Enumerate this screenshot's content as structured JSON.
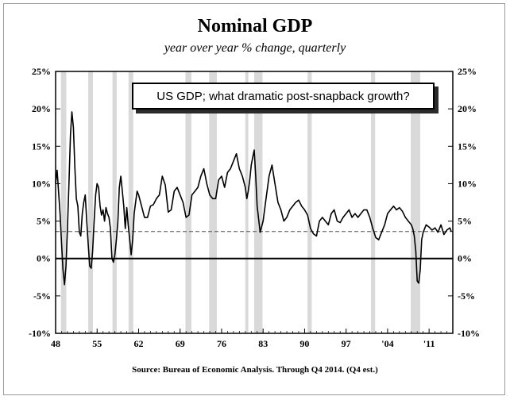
{
  "chart_data": {
    "type": "line",
    "title": "Nominal GDP",
    "subtitle": "year over year % change, quarterly",
    "source": "Source:  Bureau of Economic Analysis. Through Q4 2014. (Q4 est.)",
    "annotation": "US GDP; what dramatic post-snapback growth?",
    "ylim": [
      -10,
      25
    ],
    "yticks": [
      "-10%",
      "-5%",
      "0%",
      "5%",
      "10%",
      "15%",
      "20%",
      "25%"
    ],
    "ytick_values": [
      -10,
      -5,
      0,
      5,
      10,
      15,
      20,
      25
    ],
    "xlim": [
      1948,
      2015
    ],
    "xticks": [
      "48",
      "55",
      "62",
      "69",
      "76",
      "83",
      "90",
      "97",
      "'04",
      "'11"
    ],
    "xtick_values": [
      1948,
      1955,
      1962,
      1969,
      1976,
      1983,
      1990,
      1997,
      2004,
      2011
    ],
    "reference_line": 3.6,
    "recessions": [
      [
        1948.9,
        1949.8
      ],
      [
        1953.5,
        1954.3
      ],
      [
        1957.6,
        1958.3
      ],
      [
        1960.3,
        1961.1
      ],
      [
        1969.9,
        1970.9
      ],
      [
        1973.9,
        1975.2
      ],
      [
        1980.0,
        1980.5
      ],
      [
        1981.5,
        1982.9
      ],
      [
        1990.5,
        1991.2
      ],
      [
        2001.2,
        2001.9
      ],
      [
        2007.9,
        2009.5
      ]
    ],
    "grid": false,
    "colors": {
      "line": "#000000",
      "recession": "#d9d9d9",
      "reference": "#555555"
    },
    "series": [
      {
        "x": [
          1948,
          1948.25,
          1948.5,
          1948.75,
          1949,
          1949.25,
          1949.5,
          1949.75,
          1950,
          1950.25,
          1950.5,
          1950.75,
          1951,
          1951.25,
          1951.5,
          1951.75,
          1952,
          1952.25,
          1952.5,
          1952.75,
          1953,
          1953.25,
          1953.5,
          1953.75,
          1954,
          1954.25,
          1954.5,
          1954.75,
          1955,
          1955.25,
          1955.5,
          1955.75,
          1956,
          1956.25,
          1956.5,
          1956.75,
          1957,
          1957.25,
          1957.5,
          1957.75,
          1958,
          1958.25,
          1958.5,
          1958.75,
          1959,
          1959.25,
          1959.5,
          1959.75,
          1960,
          1960.25,
          1960.5,
          1960.75,
          1961,
          1961.25,
          1961.5,
          1961.75,
          1962,
          1962.5,
          1963,
          1963.5,
          1964,
          1964.5,
          1965,
          1965.5,
          1966,
          1966.5,
          1967,
          1967.5,
          1968,
          1968.5,
          1969,
          1969.5,
          1970,
          1970.5,
          1971,
          1971.5,
          1972,
          1972.5,
          1973,
          1973.5,
          1974,
          1974.5,
          1975,
          1975.5,
          1976,
          1976.5,
          1977,
          1977.5,
          1978,
          1978.5,
          1979,
          1979.5,
          1980,
          1980.25,
          1980.5,
          1980.75,
          1981,
          1981.25,
          1981.5,
          1981.75,
          1982,
          1982.5,
          1983,
          1983.5,
          1984,
          1984.5,
          1985,
          1985.5,
          1986,
          1986.5,
          1987,
          1987.5,
          1988,
          1988.5,
          1989,
          1989.5,
          1990,
          1990.5,
          1991,
          1991.5,
          1992,
          1992.5,
          1993,
          1993.5,
          1994,
          1994.5,
          1995,
          1995.5,
          1996,
          1996.5,
          1997,
          1997.5,
          1998,
          1998.5,
          1999,
          1999.5,
          2000,
          2000.5,
          2001,
          2001.5,
          2002,
          2002.5,
          2003,
          2003.5,
          2004,
          2004.5,
          2005,
          2005.5,
          2006,
          2006.5,
          2007,
          2007.5,
          2008,
          2008.25,
          2008.5,
          2008.75,
          2009,
          2009.25,
          2009.5,
          2009.75,
          2010,
          2010.5,
          2011,
          2011.5,
          2012,
          2012.5,
          2013,
          2013.5,
          2014,
          2014.5,
          2014.75
        ],
        "y": [
          10,
          11.8,
          9,
          6,
          2,
          -1.5,
          -3.5,
          -1,
          4,
          10,
          16.5,
          19.6,
          17.5,
          12,
          8,
          7,
          3.5,
          3,
          6,
          7.5,
          8.5,
          5,
          2,
          -1,
          -1.3,
          1,
          5,
          8.5,
          10,
          9.5,
          7,
          5.8,
          6.5,
          5,
          6.8,
          6,
          5.5,
          4,
          0,
          -0.5,
          0.5,
          2.5,
          5,
          9.5,
          11,
          9,
          7,
          4,
          6.8,
          4.5,
          2.5,
          0.5,
          2.5,
          6,
          7.5,
          9,
          8.5,
          7,
          5.5,
          5.5,
          7,
          7.2,
          8,
          8.5,
          11,
          9.8,
          6.2,
          6.5,
          9,
          9.5,
          8.5,
          7.5,
          5.5,
          5.8,
          8.5,
          9,
          9.5,
          11,
          12,
          10,
          8.5,
          8,
          8,
          10.5,
          11,
          9.5,
          11.5,
          12,
          13,
          14,
          12,
          11,
          9.5,
          8,
          9,
          10.5,
          12.5,
          13.5,
          14.5,
          11,
          7,
          3.5,
          5,
          8,
          11,
          12.5,
          10,
          7.5,
          6.5,
          5,
          5.5,
          6.5,
          7,
          7.5,
          7.8,
          7,
          6.5,
          5.8,
          4,
          3.3,
          3,
          5,
          5.5,
          5,
          4.5,
          6,
          6.5,
          5,
          4.8,
          5.5,
          6,
          6.5,
          5.5,
          6,
          5.5,
          6,
          6.5,
          6.5,
          5.5,
          4,
          2.8,
          2.5,
          3.5,
          4.5,
          6,
          6.5,
          7,
          6.5,
          6.8,
          6.3,
          5.5,
          5,
          4.5,
          4,
          3,
          1,
          -3,
          -3.3,
          -1.5,
          2.5,
          3.5,
          4.5,
          4.2,
          3.8,
          4.1,
          3.5,
          4.5,
          3.2,
          3.8,
          4.1,
          3.6
        ]
      }
    ]
  }
}
